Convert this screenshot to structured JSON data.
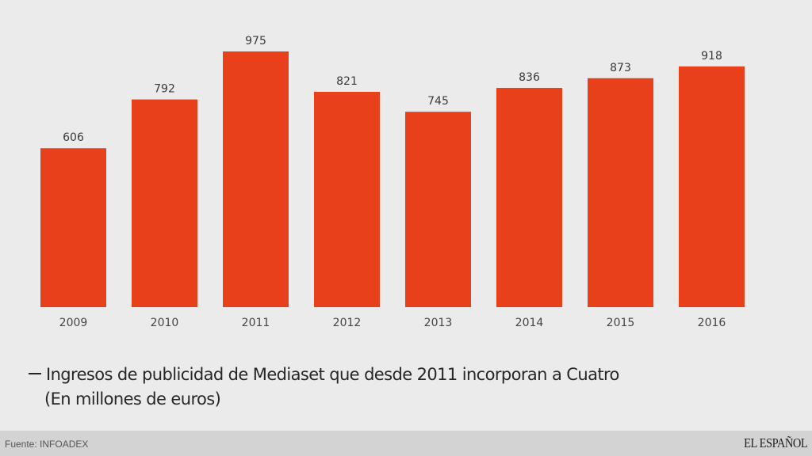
{
  "chart_data": {
    "type": "bar",
    "title": "",
    "xlabel": "",
    "ylabel": "",
    "categories": [
      "2009",
      "2010",
      "2011",
      "2012",
      "2013",
      "2014",
      "2015",
      "2016"
    ],
    "values": [
      606,
      792,
      975,
      821,
      745,
      836,
      873,
      918
    ],
    "value_labels": [
      "606",
      "792",
      "975",
      "821",
      "745",
      "836",
      "873",
      "918"
    ],
    "ylim": [
      0,
      975
    ],
    "grid": false,
    "bar_color": "#e8401a",
    "legend": {
      "entry": "Ingresos de publicidad de Mediaset que desde 2011 incorporan a Cuatro",
      "subtitle": "(En millones de euros)",
      "placement": "bottom-left"
    }
  },
  "footer": {
    "source": "Fuente: INFOADEX",
    "brand": "EL ESPAÑOL"
  }
}
